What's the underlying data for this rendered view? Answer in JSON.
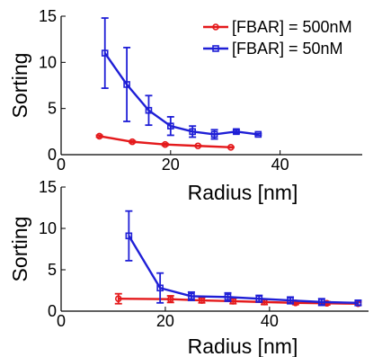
{
  "chart_data": [
    {
      "type": "line",
      "xlabel": "Radius [nm]",
      "ylabel": "Sorting",
      "xlim": [
        0,
        55
      ],
      "ylim": [
        0,
        15
      ],
      "xticks": [
        0,
        20,
        40
      ],
      "yticks": [
        0,
        5,
        10,
        15
      ],
      "legend": {
        "placement": "top-right"
      },
      "series": [
        {
          "name": "[FBAR] = 500nM",
          "color": "#e41a1c",
          "marker": "circle",
          "x": [
            7,
            13,
            19,
            25,
            31
          ],
          "y": [
            2.0,
            1.4,
            1.1,
            0.95,
            0.8
          ],
          "err": [
            0.1,
            0.1,
            0.1,
            0.05,
            0.05
          ]
        },
        {
          "name": "[FBAR] = 50nM",
          "color": "#1f1fd6",
          "marker": "square",
          "x": [
            8,
            12,
            16,
            20,
            24,
            28,
            32,
            36
          ],
          "y": [
            11.0,
            7.6,
            4.8,
            3.1,
            2.5,
            2.2,
            2.5,
            2.2
          ],
          "err": [
            3.8,
            4.0,
            1.6,
            1.0,
            0.6,
            0.5,
            0.2,
            0.1
          ]
        }
      ]
    },
    {
      "type": "line",
      "xlabel": "Radius [nm]",
      "ylabel": "Sorting",
      "xlim": [
        0,
        59
      ],
      "ylim": [
        0,
        15
      ],
      "xticks": [
        0,
        20,
        40
      ],
      "yticks": [
        0,
        5,
        10,
        15
      ],
      "series": [
        {
          "color": "#e41a1c",
          "marker": "circle",
          "x": [
            11,
            21,
            27,
            33,
            39,
            45,
            51,
            57
          ],
          "y": [
            1.5,
            1.45,
            1.3,
            1.2,
            1.1,
            1.0,
            0.95,
            0.9
          ],
          "err": [
            0.6,
            0.4,
            0.3,
            0.3,
            0.3,
            0.2,
            0.2,
            0.2
          ]
        },
        {
          "color": "#1f1fd6",
          "marker": "square",
          "x": [
            13,
            19,
            25,
            32,
            38,
            44,
            50,
            57
          ],
          "y": [
            9.1,
            2.8,
            1.8,
            1.7,
            1.5,
            1.3,
            1.1,
            1.0
          ],
          "err": [
            3.0,
            1.8,
            0.5,
            0.5,
            0.4,
            0.4,
            0.4,
            0.3
          ]
        }
      ]
    }
  ]
}
